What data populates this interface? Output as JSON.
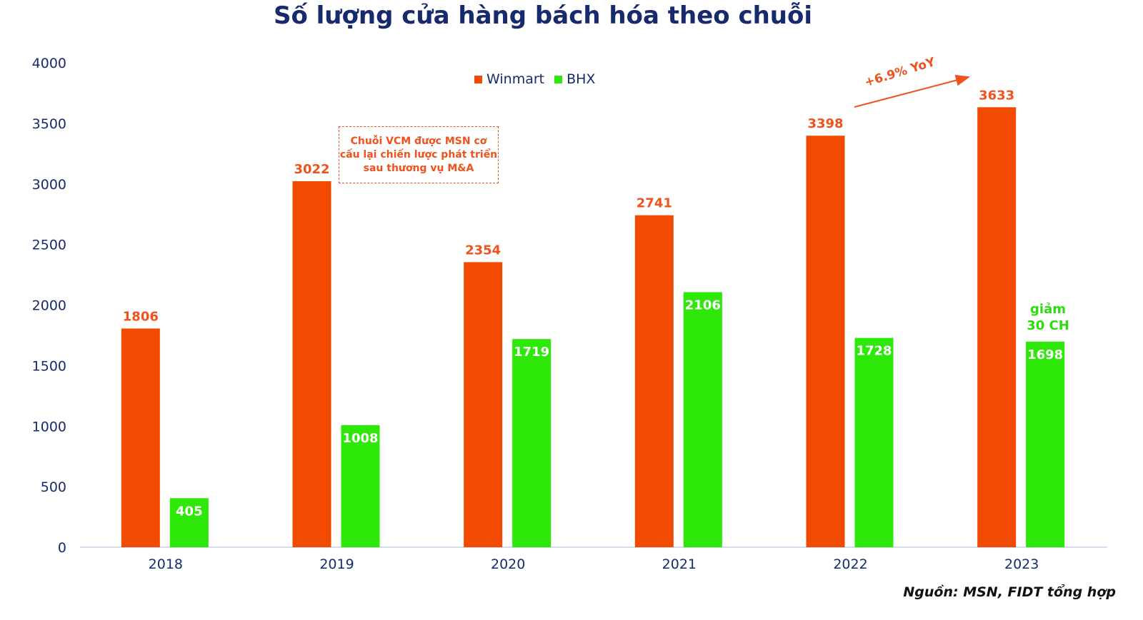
{
  "chart_data": {
    "type": "bar",
    "title": "Số lượng cửa hàng bách hóa theo chuỗi",
    "categories": [
      "2018",
      "2019",
      "2020",
      "2021",
      "2022",
      "2023"
    ],
    "series": [
      {
        "name": "Winmart",
        "color": "#f24a00",
        "values": [
          1806,
          3022,
          2354,
          2741,
          3398,
          3633
        ]
      },
      {
        "name": "BHX",
        "color": "#2ee80a",
        "values": [
          405,
          1008,
          1719,
          2106,
          1728,
          1698
        ]
      }
    ],
    "ylim": [
      0,
      4000
    ],
    "yticks": [
      0,
      500,
      1000,
      1500,
      2000,
      2500,
      3000,
      3500,
      4000
    ],
    "xlabel": "",
    "ylabel": "",
    "legend": "top-center",
    "grid": false,
    "annotations": {
      "vcm_note": "Chuỗi VCM được MSN cơ cấu lại chiến lược phát triển sau thương vụ M&A",
      "yoy": "+6.9% YoY",
      "decline_line1": "giảm",
      "decline_line2": "30 CH"
    },
    "source": "Nguồn: MSN, FIDT tổng hợp"
  }
}
